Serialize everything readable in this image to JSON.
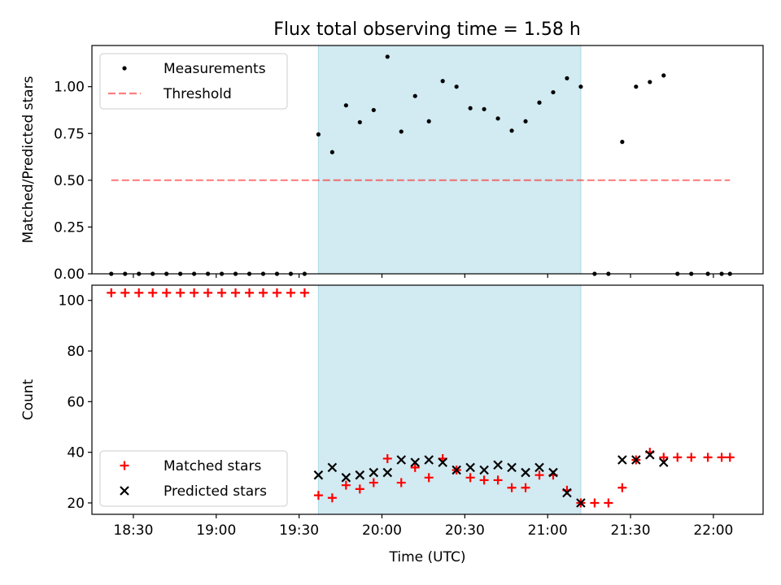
{
  "title": "Flux total observing time = 1.58 h",
  "colors": {
    "shade": "#add8e6",
    "measure": "#000000",
    "threshold": "#ff0000",
    "matched": "#ff0000",
    "predicted": "#000000"
  },
  "chart_data": [
    {
      "type": "scatter",
      "ylabel": "Matched/Predicted stars",
      "xlabel": "",
      "ylim": [
        0,
        1.22
      ],
      "yticks": [
        "0.00",
        "0.25",
        "0.50",
        "0.75",
        "1.00"
      ],
      "xlim": [
        "18:15",
        "22:18"
      ],
      "legend": "top-left",
      "shaded_interval": [
        "19:37",
        "21:12"
      ],
      "threshold": {
        "name": "Threshold",
        "y": 0.5,
        "x": [
          "18:22",
          "22:06"
        ]
      },
      "series": [
        {
          "name": "Measurements",
          "points": [
            [
              "18:22",
              0
            ],
            [
              "18:27",
              0
            ],
            [
              "18:32",
              0
            ],
            [
              "18:37",
              0
            ],
            [
              "18:42",
              0
            ],
            [
              "18:47",
              0
            ],
            [
              "18:52",
              0
            ],
            [
              "18:57",
              0
            ],
            [
              "19:02",
              0
            ],
            [
              "19:07",
              0
            ],
            [
              "19:12",
              0
            ],
            [
              "19:17",
              0
            ],
            [
              "19:22",
              0
            ],
            [
              "19:27",
              0
            ],
            [
              "19:32",
              0
            ],
            [
              "19:37",
              0.745
            ],
            [
              "19:42",
              0.65
            ],
            [
              "19:47",
              0.9
            ],
            [
              "19:52",
              0.81
            ],
            [
              "19:57",
              0.875
            ],
            [
              "20:02",
              1.16
            ],
            [
              "20:07",
              0.76
            ],
            [
              "20:12",
              0.95
            ],
            [
              "20:17",
              0.815
            ],
            [
              "20:22",
              1.03
            ],
            [
              "20:27",
              1.0
            ],
            [
              "20:32",
              0.885
            ],
            [
              "20:37",
              0.88
            ],
            [
              "20:42",
              0.83
            ],
            [
              "20:47",
              0.765
            ],
            [
              "20:52",
              0.815
            ],
            [
              "20:57",
              0.915
            ],
            [
              "21:02",
              0.97
            ],
            [
              "21:07",
              1.045
            ],
            [
              "21:12",
              1.0
            ],
            [
              "21:17",
              0
            ],
            [
              "21:22",
              0
            ],
            [
              "21:27",
              0.705
            ],
            [
              "21:32",
              1.0
            ],
            [
              "21:37",
              1.025
            ],
            [
              "21:42",
              1.06
            ],
            [
              "21:47",
              0
            ],
            [
              "21:52",
              0
            ],
            [
              "21:58",
              0
            ],
            [
              "22:03",
              0
            ],
            [
              "22:06",
              0
            ]
          ]
        }
      ]
    },
    {
      "type": "scatter",
      "ylabel": "Count",
      "xlabel": "Time (UTC)",
      "ylim": [
        15.5,
        106
      ],
      "yticks": [
        "20",
        "40",
        "60",
        "80",
        "100"
      ],
      "xlim": [
        "18:15",
        "22:18"
      ],
      "xticks": [
        "18:30",
        "19:00",
        "19:30",
        "20:00",
        "20:30",
        "21:00",
        "21:30",
        "22:00"
      ],
      "legend": "bottom-left",
      "shaded_interval": [
        "19:37",
        "21:12"
      ],
      "series": [
        {
          "name": "Matched stars",
          "points": [
            [
              "18:22",
              103
            ],
            [
              "18:27",
              103
            ],
            [
              "18:32",
              103
            ],
            [
              "18:37",
              103
            ],
            [
              "18:42",
              103
            ],
            [
              "18:47",
              103
            ],
            [
              "18:52",
              103
            ],
            [
              "18:57",
              103
            ],
            [
              "19:02",
              103
            ],
            [
              "19:07",
              103
            ],
            [
              "19:12",
              103
            ],
            [
              "19:17",
              103
            ],
            [
              "19:22",
              103
            ],
            [
              "19:27",
              103
            ],
            [
              "19:32",
              103
            ],
            [
              "19:37",
              23
            ],
            [
              "19:42",
              22
            ],
            [
              "19:47",
              27
            ],
            [
              "19:52",
              25.5
            ],
            [
              "19:57",
              28
            ],
            [
              "20:02",
              37.5
            ],
            [
              "20:07",
              28
            ],
            [
              "20:12",
              34
            ],
            [
              "20:17",
              30
            ],
            [
              "20:22",
              37.5
            ],
            [
              "20:27",
              33
            ],
            [
              "20:32",
              30
            ],
            [
              "20:37",
              29
            ],
            [
              "20:42",
              29
            ],
            [
              "20:47",
              26
            ],
            [
              "20:52",
              26
            ],
            [
              "20:57",
              31
            ],
            [
              "21:02",
              31
            ],
            [
              "21:07",
              25
            ],
            [
              "21:12",
              20
            ],
            [
              "21:17",
              20
            ],
            [
              "21:22",
              20
            ],
            [
              "21:27",
              26
            ],
            [
              "21:32",
              37
            ],
            [
              "21:37",
              40
            ],
            [
              "21:42",
              38
            ],
            [
              "21:47",
              38
            ],
            [
              "21:52",
              38
            ],
            [
              "21:58",
              38
            ],
            [
              "22:03",
              38
            ],
            [
              "22:06",
              38
            ]
          ]
        },
        {
          "name": "Predicted stars",
          "points": [
            [
              "19:37",
              31
            ],
            [
              "19:42",
              34
            ],
            [
              "19:47",
              30
            ],
            [
              "19:52",
              31
            ],
            [
              "19:57",
              32
            ],
            [
              "20:02",
              32
            ],
            [
              "20:07",
              37
            ],
            [
              "20:12",
              36
            ],
            [
              "20:17",
              37
            ],
            [
              "20:22",
              36
            ],
            [
              "20:27",
              33
            ],
            [
              "20:32",
              34
            ],
            [
              "20:37",
              33
            ],
            [
              "20:42",
              35
            ],
            [
              "20:47",
              34
            ],
            [
              "20:52",
              32
            ],
            [
              "20:57",
              34
            ],
            [
              "21:02",
              32
            ],
            [
              "21:07",
              24
            ],
            [
              "21:12",
              20
            ],
            [
              "21:27",
              37
            ],
            [
              "21:32",
              37
            ],
            [
              "21:37",
              39
            ],
            [
              "21:42",
              36
            ]
          ]
        }
      ]
    }
  ]
}
